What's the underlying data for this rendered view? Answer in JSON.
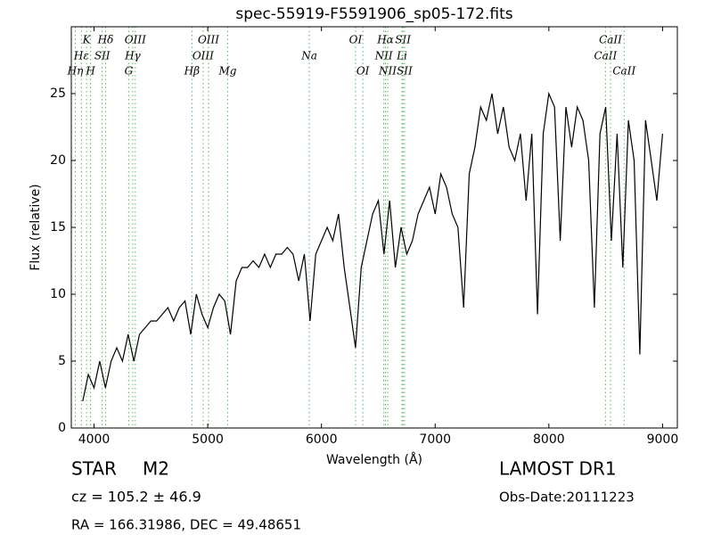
{
  "chart_data": {
    "type": "line",
    "title": "spec-55919-F5591906_sp05-172.fits",
    "x_label": "Wavelength (Å)",
    "y_label": "Flux (relative)",
    "xlim": [
      3800,
      9130
    ],
    "ylim": [
      0,
      30
    ],
    "xticks": [
      4000,
      5000,
      6000,
      7000,
      8000,
      9000
    ],
    "yticks": [
      0,
      5,
      10,
      15,
      20,
      25
    ],
    "x": [
      3900,
      3950,
      4000,
      4050,
      4100,
      4150,
      4200,
      4250,
      4300,
      4350,
      4400,
      4450,
      4500,
      4550,
      4600,
      4650,
      4700,
      4750,
      4800,
      4850,
      4900,
      4950,
      5000,
      5050,
      5100,
      5150,
      5200,
      5250,
      5300,
      5350,
      5400,
      5450,
      5500,
      5550,
      5600,
      5650,
      5700,
      5750,
      5800,
      5850,
      5900,
      5950,
      6000,
      6050,
      6100,
      6150,
      6200,
      6250,
      6300,
      6350,
      6400,
      6450,
      6500,
      6550,
      6600,
      6650,
      6700,
      6750,
      6800,
      6850,
      6900,
      6950,
      7000,
      7050,
      7100,
      7150,
      7200,
      7250,
      7300,
      7350,
      7400,
      7450,
      7500,
      7550,
      7600,
      7650,
      7700,
      7750,
      7800,
      7850,
      7900,
      7950,
      8000,
      8050,
      8100,
      8150,
      8200,
      8250,
      8300,
      8350,
      8400,
      8450,
      8500,
      8550,
      8600,
      8650,
      8700,
      8750,
      8800,
      8850,
      8900,
      8950,
      9000
    ],
    "series": [
      {
        "color": "#000000",
        "values": [
          2,
          4,
          3,
          5,
          3,
          5,
          6,
          5,
          7,
          5,
          7,
          7.5,
          8,
          8,
          8.5,
          9,
          8,
          9,
          9.5,
          7,
          10,
          8.5,
          7.5,
          9,
          10,
          9.5,
          7,
          11,
          12,
          12,
          12.5,
          12,
          13,
          12,
          13,
          13,
          13.5,
          13,
          11,
          13,
          8,
          13,
          14,
          15,
          14,
          16,
          12,
          9,
          6,
          12,
          14,
          16,
          17,
          13,
          17,
          12,
          15,
          13,
          14,
          16,
          17,
          18,
          16,
          19,
          18,
          16,
          15,
          9,
          19,
          21,
          24,
          23,
          25,
          22,
          24,
          21,
          20,
          22,
          17,
          22,
          8.5,
          22,
          25,
          24,
          14,
          24,
          21,
          24,
          23,
          20,
          9,
          22,
          24,
          14,
          22,
          12,
          23,
          20,
          5.5,
          23,
          20,
          17,
          22
        ]
      }
    ],
    "line_color": "#5cb85c",
    "lines": [
      {
        "label": "Hη",
        "x": 3835
      },
      {
        "label": "Hε",
        "x": 3889
      },
      {
        "label": "K",
        "x": 3934
      },
      {
        "label": "H",
        "x": 3969
      },
      {
        "label": "SII",
        "x": 4072
      },
      {
        "label": "Hδ",
        "x": 4102
      },
      {
        "label": "G",
        "x": 4305
      },
      {
        "label": "Hγ",
        "x": 4340
      },
      {
        "label": "OIII",
        "x": 4363
      },
      {
        "label": "Hβ",
        "x": 4861
      },
      {
        "label": "OIII",
        "x": 4959
      },
      {
        "label": "OIII",
        "x": 5007
      },
      {
        "label": "Mg",
        "x": 5175
      },
      {
        "label": "Na",
        "x": 5893
      },
      {
        "label": "OI",
        "x": 6300
      },
      {
        "label": "OI",
        "x": 6364
      },
      {
        "label": "NII",
        "x": 6548
      },
      {
        "label": "Hα",
        "x": 6563
      },
      {
        "label": "NII",
        "x": 6583
      },
      {
        "label": "Li",
        "x": 6708
      },
      {
        "label": "SII",
        "x": 6717
      },
      {
        "label": "SII",
        "x": 6731
      },
      {
        "label": "CaII",
        "x": 8498
      },
      {
        "label": "CaII",
        "x": 8542
      },
      {
        "label": "CaII",
        "x": 8662
      }
    ],
    "class": "STAR",
    "subclass": "M2",
    "cz": "cz = 105.2 ± 46.9",
    "coords": "RA = 166.31986, DEC = 49.48651",
    "release": "LAMOST DR1",
    "obs_date": "Obs-Date:20111223"
  }
}
